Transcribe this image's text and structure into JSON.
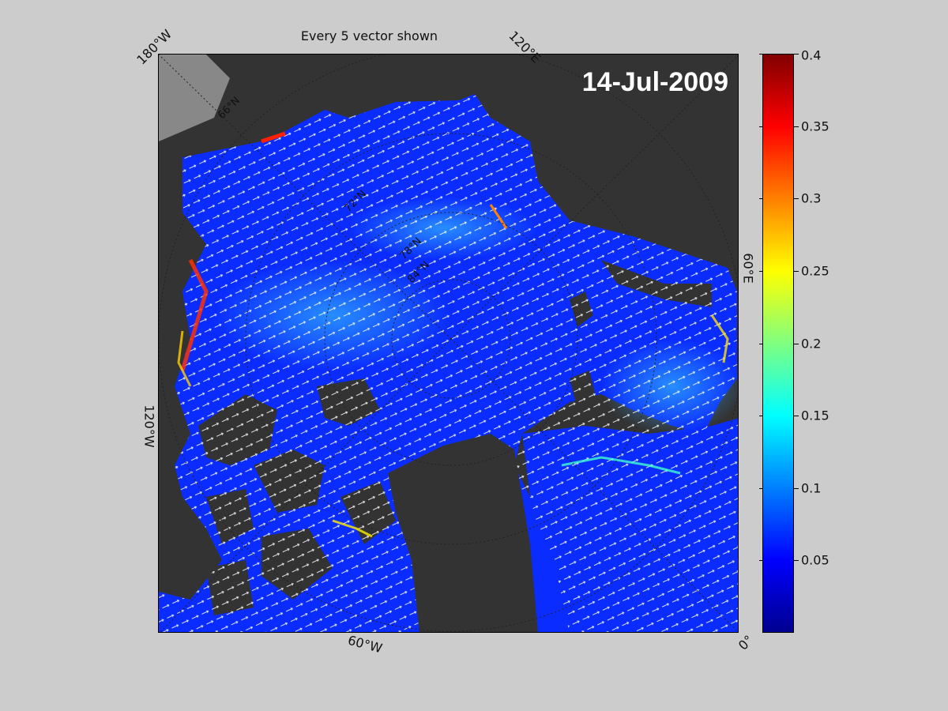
{
  "title": "Every 5 vector shown",
  "date": "14-Jul-2009",
  "longitude_labels": {
    "lon_180w": "180°W",
    "lon_120e": "120°E",
    "lon_60e": "60°E",
    "lon_120w": "120°W",
    "lon_60w": "60°W",
    "lon_0": "0°"
  },
  "latitude_labels": [
    "66°N",
    "72°N",
    "78°N",
    "84°N"
  ],
  "colorbar": {
    "min": 0,
    "max": 0.4,
    "ticks": [
      "0.4",
      "0.35",
      "0.3",
      "0.25",
      "0.2",
      "0.15",
      "0.1",
      "0.05"
    ],
    "tick_values": [
      0.4,
      0.35,
      0.3,
      0.25,
      0.2,
      0.15,
      0.1,
      0.05
    ],
    "colormap": "jet"
  },
  "colors": {
    "background": "#cccccc",
    "land": "#333333",
    "ice_shelf": "#888888",
    "ocean_low": "#0a2cff",
    "vectors": "#ffffff"
  }
}
